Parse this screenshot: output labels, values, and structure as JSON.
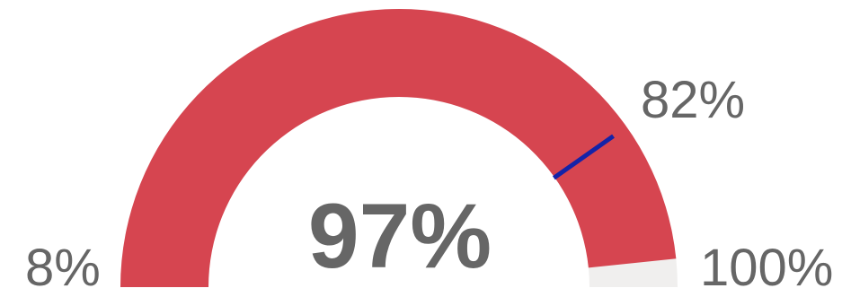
{
  "chart_data": {
    "type": "gauge",
    "min_label": "8%",
    "max_label": "100%",
    "value_label": "97%",
    "target_label": "82%",
    "min": 8,
    "max": 100,
    "value": 97,
    "target": 82,
    "colors": {
      "fill": "#d64550",
      "track": "#f0efee",
      "target": "#1423a8",
      "text": "#666666"
    }
  }
}
